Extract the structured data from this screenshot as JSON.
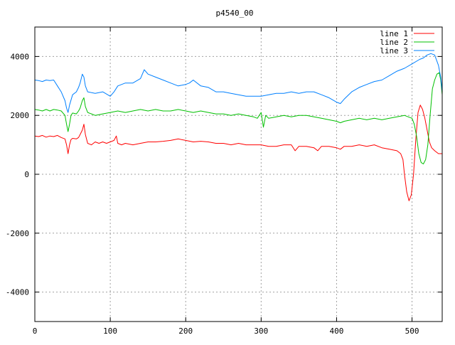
{
  "chart_data": {
    "type": "line",
    "title": "p4540_00",
    "xlabel": "",
    "ylabel": "",
    "xlim": [
      0,
      540
    ],
    "ylim": [
      -5000,
      5000
    ],
    "x_ticks": [
      0,
      100,
      200,
      300,
      400,
      500
    ],
    "y_ticks": [
      -4000,
      -2000,
      0,
      2000,
      4000
    ],
    "grid": true,
    "legend_position": "top-right",
    "series": [
      {
        "name": "line 1",
        "color": "#ff0000",
        "points": [
          [
            0,
            1300
          ],
          [
            5,
            1280
          ],
          [
            10,
            1320
          ],
          [
            15,
            1260
          ],
          [
            20,
            1300
          ],
          [
            25,
            1280
          ],
          [
            30,
            1320
          ],
          [
            35,
            1250
          ],
          [
            40,
            1200
          ],
          [
            42,
            1000
          ],
          [
            44,
            700
          ],
          [
            46,
            1000
          ],
          [
            48,
            1180
          ],
          [
            50,
            1220
          ],
          [
            55,
            1200
          ],
          [
            58,
            1250
          ],
          [
            60,
            1350
          ],
          [
            63,
            1500
          ],
          [
            65,
            1700
          ],
          [
            67,
            1350
          ],
          [
            70,
            1050
          ],
          [
            75,
            1000
          ],
          [
            80,
            1100
          ],
          [
            85,
            1050
          ],
          [
            90,
            1100
          ],
          [
            95,
            1050
          ],
          [
            100,
            1100
          ],
          [
            105,
            1150
          ],
          [
            108,
            1300
          ],
          [
            110,
            1050
          ],
          [
            115,
            1000
          ],
          [
            120,
            1050
          ],
          [
            130,
            1000
          ],
          [
            140,
            1050
          ],
          [
            150,
            1100
          ],
          [
            160,
            1100
          ],
          [
            170,
            1120
          ],
          [
            180,
            1150
          ],
          [
            190,
            1200
          ],
          [
            200,
            1150
          ],
          [
            210,
            1100
          ],
          [
            220,
            1120
          ],
          [
            230,
            1100
          ],
          [
            240,
            1050
          ],
          [
            250,
            1050
          ],
          [
            260,
            1000
          ],
          [
            270,
            1050
          ],
          [
            280,
            1000
          ],
          [
            290,
            1000
          ],
          [
            300,
            1000
          ],
          [
            310,
            950
          ],
          [
            320,
            950
          ],
          [
            330,
            1000
          ],
          [
            340,
            1000
          ],
          [
            345,
            800
          ],
          [
            350,
            950
          ],
          [
            360,
            950
          ],
          [
            370,
            900
          ],
          [
            375,
            800
          ],
          [
            380,
            950
          ],
          [
            390,
            950
          ],
          [
            400,
            900
          ],
          [
            405,
            850
          ],
          [
            410,
            950
          ],
          [
            420,
            950
          ],
          [
            430,
            1000
          ],
          [
            440,
            950
          ],
          [
            450,
            1000
          ],
          [
            460,
            900
          ],
          [
            470,
            850
          ],
          [
            480,
            800
          ],
          [
            485,
            700
          ],
          [
            488,
            500
          ],
          [
            490,
            0
          ],
          [
            493,
            -600
          ],
          [
            496,
            -900
          ],
          [
            499,
            -700
          ],
          [
            502,
            0
          ],
          [
            505,
            1200
          ],
          [
            508,
            2100
          ],
          [
            511,
            2350
          ],
          [
            514,
            2200
          ],
          [
            517,
            1900
          ],
          [
            520,
            1500
          ],
          [
            523,
            1100
          ],
          [
            526,
            900
          ],
          [
            530,
            800
          ],
          [
            535,
            700
          ],
          [
            540,
            700
          ]
        ]
      },
      {
        "name": "line 2",
        "color": "#00c000",
        "points": [
          [
            0,
            2200
          ],
          [
            5,
            2180
          ],
          [
            10,
            2150
          ],
          [
            15,
            2200
          ],
          [
            20,
            2150
          ],
          [
            25,
            2200
          ],
          [
            30,
            2180
          ],
          [
            35,
            2150
          ],
          [
            40,
            2000
          ],
          [
            42,
            1700
          ],
          [
            44,
            1450
          ],
          [
            46,
            1700
          ],
          [
            48,
            2000
          ],
          [
            50,
            2080
          ],
          [
            55,
            2050
          ],
          [
            58,
            2150
          ],
          [
            60,
            2250
          ],
          [
            63,
            2500
          ],
          [
            65,
            2600
          ],
          [
            67,
            2300
          ],
          [
            70,
            2100
          ],
          [
            75,
            2050
          ],
          [
            80,
            2000
          ],
          [
            90,
            2050
          ],
          [
            100,
            2100
          ],
          [
            110,
            2150
          ],
          [
            120,
            2100
          ],
          [
            130,
            2150
          ],
          [
            140,
            2200
          ],
          [
            150,
            2150
          ],
          [
            160,
            2200
          ],
          [
            170,
            2150
          ],
          [
            180,
            2150
          ],
          [
            190,
            2200
          ],
          [
            200,
            2150
          ],
          [
            210,
            2100
          ],
          [
            220,
            2150
          ],
          [
            230,
            2100
          ],
          [
            240,
            2050
          ],
          [
            250,
            2050
          ],
          [
            260,
            2000
          ],
          [
            270,
            2050
          ],
          [
            280,
            2000
          ],
          [
            290,
            1950
          ],
          [
            295,
            1900
          ],
          [
            300,
            2100
          ],
          [
            303,
            1600
          ],
          [
            306,
            2000
          ],
          [
            310,
            1900
          ],
          [
            320,
            1950
          ],
          [
            330,
            2000
          ],
          [
            340,
            1950
          ],
          [
            350,
            2000
          ],
          [
            360,
            2000
          ],
          [
            370,
            1950
          ],
          [
            380,
            1900
          ],
          [
            390,
            1850
          ],
          [
            400,
            1800
          ],
          [
            405,
            1750
          ],
          [
            410,
            1800
          ],
          [
            420,
            1850
          ],
          [
            430,
            1900
          ],
          [
            440,
            1850
          ],
          [
            450,
            1900
          ],
          [
            460,
            1850
          ],
          [
            470,
            1900
          ],
          [
            480,
            1950
          ],
          [
            490,
            2000
          ],
          [
            495,
            1950
          ],
          [
            500,
            1900
          ],
          [
            503,
            1700
          ],
          [
            506,
            1300
          ],
          [
            509,
            700
          ],
          [
            512,
            400
          ],
          [
            515,
            350
          ],
          [
            518,
            500
          ],
          [
            521,
            1000
          ],
          [
            524,
            2000
          ],
          [
            527,
            2900
          ],
          [
            530,
            3200
          ],
          [
            533,
            3400
          ],
          [
            536,
            3450
          ],
          [
            538,
            3200
          ],
          [
            540,
            2700
          ]
        ]
      },
      {
        "name": "line 3",
        "color": "#0080ff",
        "points": [
          [
            0,
            3200
          ],
          [
            5,
            3180
          ],
          [
            10,
            3150
          ],
          [
            15,
            3200
          ],
          [
            20,
            3180
          ],
          [
            25,
            3200
          ],
          [
            30,
            3000
          ],
          [
            35,
            2800
          ],
          [
            40,
            2500
          ],
          [
            42,
            2250
          ],
          [
            44,
            2100
          ],
          [
            46,
            2350
          ],
          [
            50,
            2700
          ],
          [
            55,
            2800
          ],
          [
            58,
            2950
          ],
          [
            60,
            3100
          ],
          [
            63,
            3400
          ],
          [
            65,
            3300
          ],
          [
            67,
            3000
          ],
          [
            70,
            2800
          ],
          [
            80,
            2750
          ],
          [
            90,
            2800
          ],
          [
            100,
            2650
          ],
          [
            105,
            2800
          ],
          [
            110,
            3000
          ],
          [
            120,
            3100
          ],
          [
            130,
            3100
          ],
          [
            140,
            3250
          ],
          [
            145,
            3550
          ],
          [
            150,
            3400
          ],
          [
            160,
            3300
          ],
          [
            170,
            3200
          ],
          [
            180,
            3100
          ],
          [
            190,
            3000
          ],
          [
            200,
            3050
          ],
          [
            205,
            3100
          ],
          [
            210,
            3200
          ],
          [
            220,
            3000
          ],
          [
            230,
            2950
          ],
          [
            240,
            2800
          ],
          [
            250,
            2800
          ],
          [
            260,
            2750
          ],
          [
            270,
            2700
          ],
          [
            280,
            2650
          ],
          [
            290,
            2650
          ],
          [
            300,
            2650
          ],
          [
            310,
            2700
          ],
          [
            320,
            2750
          ],
          [
            330,
            2750
          ],
          [
            340,
            2800
          ],
          [
            350,
            2750
          ],
          [
            360,
            2800
          ],
          [
            370,
            2800
          ],
          [
            380,
            2700
          ],
          [
            390,
            2600
          ],
          [
            400,
            2450
          ],
          [
            405,
            2400
          ],
          [
            410,
            2550
          ],
          [
            420,
            2800
          ],
          [
            430,
            2950
          ],
          [
            440,
            3050
          ],
          [
            450,
            3150
          ],
          [
            460,
            3200
          ],
          [
            470,
            3350
          ],
          [
            480,
            3500
          ],
          [
            490,
            3600
          ],
          [
            500,
            3750
          ],
          [
            510,
            3900
          ],
          [
            515,
            3950
          ],
          [
            520,
            4050
          ],
          [
            525,
            4100
          ],
          [
            530,
            4050
          ],
          [
            535,
            3700
          ],
          [
            538,
            3300
          ],
          [
            540,
            2800
          ]
        ]
      }
    ]
  }
}
